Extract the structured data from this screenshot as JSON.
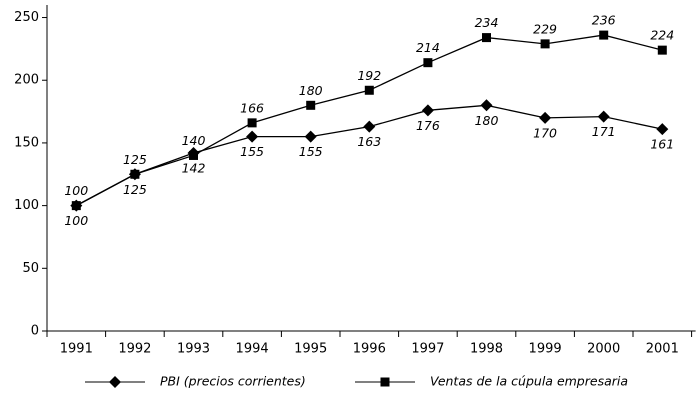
{
  "chart_data": {
    "type": "line",
    "categories": [
      "1991",
      "1992",
      "1993",
      "1994",
      "1995",
      "1996",
      "1997",
      "1998",
      "1999",
      "2000",
      "2001"
    ],
    "series": [
      {
        "name": "PBI (precios corrientes)",
        "color": "#000000",
        "marker": "diamond",
        "label_position": "below",
        "values": [
          100,
          125,
          142,
          155,
          155,
          163,
          176,
          180,
          170,
          171,
          161
        ]
      },
      {
        "name": "Ventas de la cúpula empresaria",
        "color": "#000000",
        "marker": "square",
        "label_position": "above",
        "values": [
          100,
          125,
          140,
          166,
          180,
          192,
          214,
          234,
          229,
          236,
          224
        ]
      }
    ],
    "ylim": [
      0,
      260
    ],
    "yticks": [
      0,
      50,
      100,
      150,
      200,
      250
    ],
    "grid": false
  }
}
